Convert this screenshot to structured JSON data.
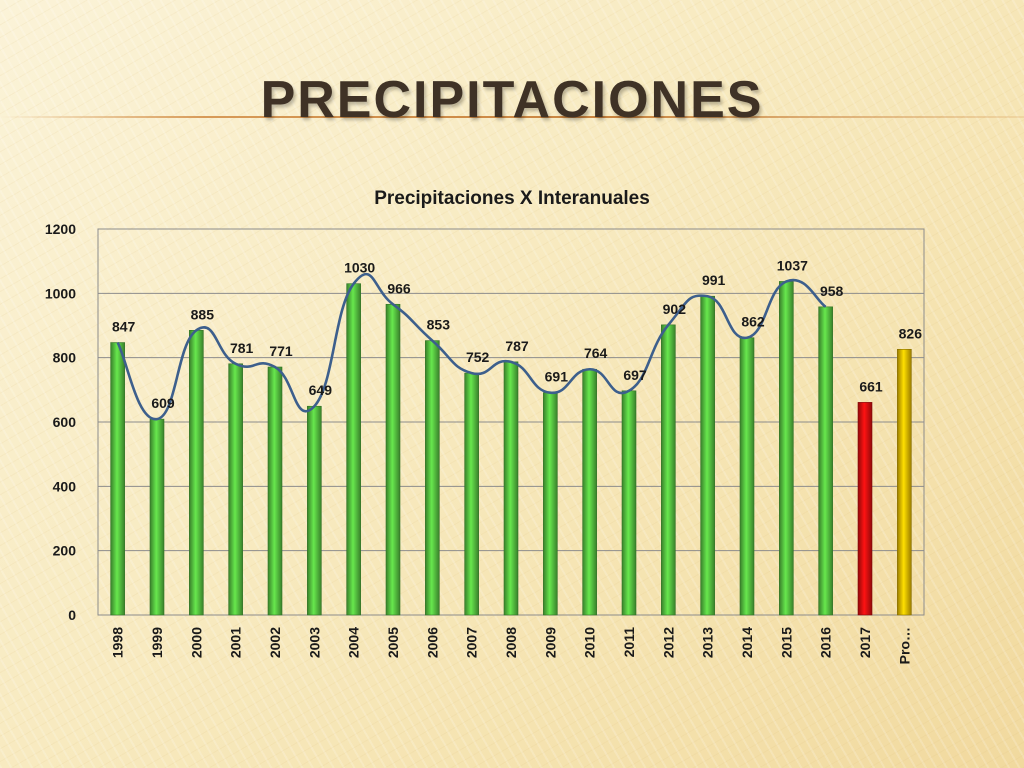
{
  "page_title": "PRECIPITACIONES",
  "chart_data": {
    "type": "bar",
    "title": "Precipitaciones  X  Interanuales",
    "xlabel": "",
    "ylabel": "",
    "ylim": [
      0,
      1200
    ],
    "yticks": [
      0,
      200,
      400,
      600,
      800,
      1000,
      1200
    ],
    "grid": true,
    "categories": [
      "1998",
      "1999",
      "2000",
      "2001",
      "2002",
      "2003",
      "2004",
      "2005",
      "2006",
      "2007",
      "2008",
      "2009",
      "2010",
      "2011",
      "2012",
      "2013",
      "2014",
      "2015",
      "2016",
      "2017",
      "Pro…"
    ],
    "values": [
      847,
      609,
      885,
      781,
      771,
      649,
      1030,
      966,
      853,
      752,
      787,
      691,
      764,
      697,
      902,
      991,
      862,
      1037,
      958,
      661,
      826
    ],
    "bar_colors": [
      "#5ccf45",
      "#5ccf45",
      "#5ccf45",
      "#5ccf45",
      "#5ccf45",
      "#5ccf45",
      "#5ccf45",
      "#5ccf45",
      "#5ccf45",
      "#5ccf45",
      "#5ccf45",
      "#5ccf45",
      "#5ccf45",
      "#5ccf45",
      "#5ccf45",
      "#5ccf45",
      "#5ccf45",
      "#5ccf45",
      "#5ccf45",
      "#e81010",
      "#f8c800"
    ],
    "trendline": {
      "color": "#3d5f8c",
      "type": "smoothed",
      "categories": [
        "1998",
        "1999",
        "2000",
        "2001",
        "2002",
        "2003",
        "2004",
        "2005",
        "2006",
        "2007",
        "2008",
        "2009",
        "2010",
        "2011",
        "2012",
        "2013",
        "2014",
        "2015",
        "2016"
      ],
      "values": [
        847,
        609,
        885,
        781,
        771,
        649,
        1030,
        966,
        853,
        752,
        787,
        691,
        764,
        697,
        902,
        991,
        862,
        1037,
        958
      ]
    }
  },
  "colors": {
    "text": "#1a1a1a",
    "grid": "#8c8c8c",
    "title": "#3f3226"
  }
}
